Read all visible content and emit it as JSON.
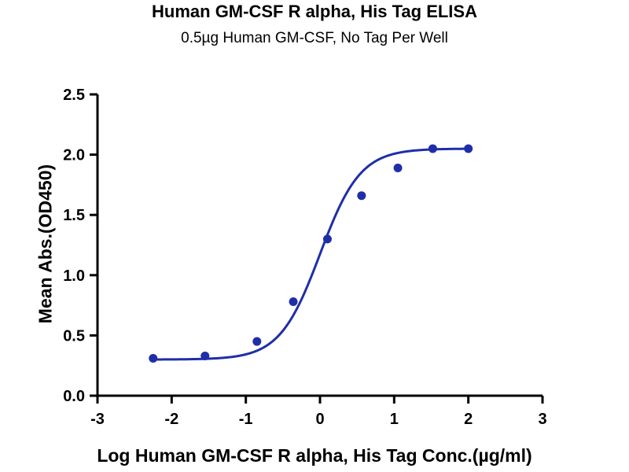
{
  "chart_data": {
    "type": "scatter",
    "title": "Human GM-CSF R alpha, His Tag ELISA",
    "subtitle": "0.5µg Human GM-CSF, No Tag Per Well",
    "xlabel": "Log Human GM-CSF R alpha, His Tag Conc.(µg/ml)",
    "ylabel": "Mean Abs.(OD450)",
    "xlim": [
      -3,
      3
    ],
    "ylim": [
      0,
      2.5
    ],
    "x_ticks": [
      "-3",
      "-2",
      "-1",
      "0",
      "1",
      "2",
      "3"
    ],
    "y_ticks": [
      "0.0",
      "0.5",
      "1.0",
      "1.5",
      "2.0",
      "2.5"
    ],
    "grid": false,
    "series": [
      {
        "points": [
          {
            "x": -2.25,
            "y": 0.31
          },
          {
            "x": -1.55,
            "y": 0.33
          },
          {
            "x": -0.85,
            "y": 0.45
          },
          {
            "x": -0.36,
            "y": 0.78
          },
          {
            "x": 0.1,
            "y": 1.3
          },
          {
            "x": 0.56,
            "y": 1.66
          },
          {
            "x": 1.05,
            "y": 1.89
          },
          {
            "x": 1.52,
            "y": 2.05
          },
          {
            "x": 2.0,
            "y": 2.05
          }
        ],
        "fit_curve": {
          "model": "4PL",
          "bottom": 0.3,
          "top": 2.05,
          "logEC50": 0.0,
          "hill": 1.6
        }
      }
    ],
    "colors": {
      "series": "#1f2ea8",
      "axis": "#000000"
    }
  }
}
